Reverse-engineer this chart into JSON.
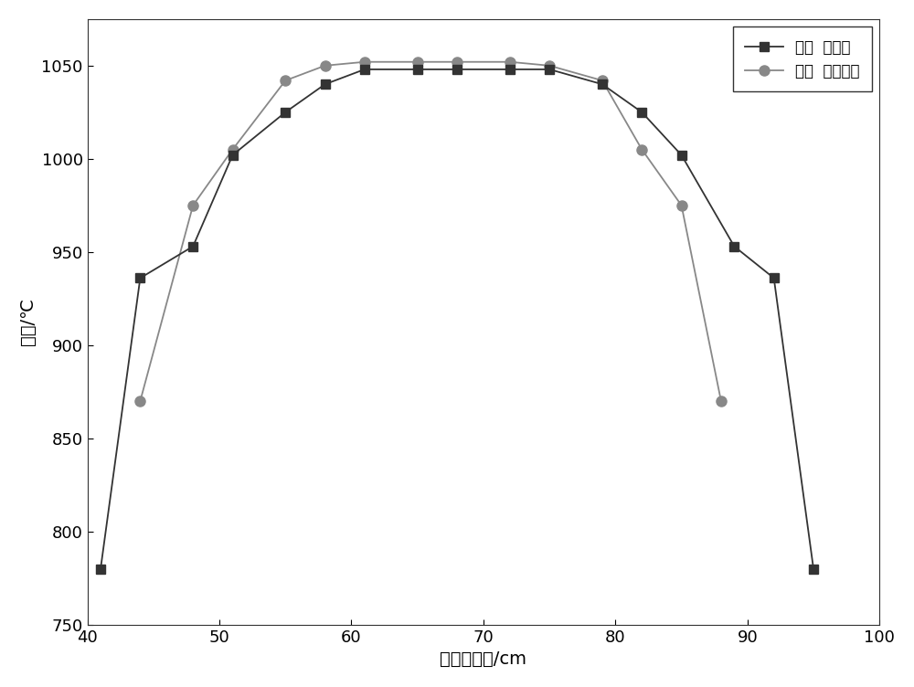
{
  "series1_label": "温度  加氢气",
  "series2_label": "温度  不加氢气",
  "series1_x": [
    41,
    44,
    48,
    51,
    55,
    58,
    61,
    65,
    68,
    72,
    75,
    79,
    82,
    85,
    89,
    92,
    95
  ],
  "series1_y": [
    780,
    936,
    953,
    1002,
    1025,
    1040,
    1048,
    1048,
    1048,
    1048,
    1048,
    1040,
    1025,
    1002,
    953,
    936,
    780
  ],
  "series2_x": [
    44,
    48,
    51,
    55,
    58,
    61,
    65,
    68,
    72,
    75,
    79,
    82,
    85,
    88
  ],
  "series2_y": [
    870,
    975,
    1005,
    1042,
    1050,
    1052,
    1052,
    1052,
    1052,
    1050,
    1042,
    1005,
    975,
    870
  ],
  "series1_color": "#333333",
  "series2_color": "#888888",
  "xlabel": "石英管位置/cm",
  "ylabel": "温度/℃",
  "xlim": [
    40,
    100
  ],
  "ylim": [
    750,
    1075
  ],
  "xticks": [
    40,
    50,
    60,
    70,
    80,
    90,
    100
  ],
  "yticks": [
    750,
    800,
    850,
    900,
    950,
    1000,
    1050
  ],
  "background_color": "#ffffff",
  "label_fontsize": 14,
  "tick_fontsize": 13,
  "legend_fontsize": 12
}
